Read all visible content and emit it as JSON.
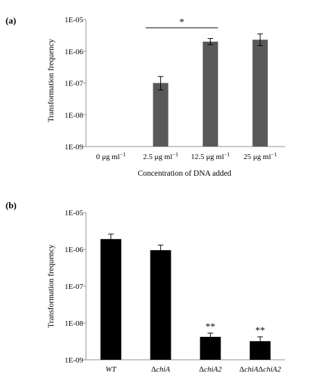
{
  "colors": {
    "panel_a_bar": "#595959",
    "panel_b_bar": "#000000",
    "axis": "#8c8c8c"
  },
  "chart_data": [
    {
      "type": "bar",
      "panel_label": "(a)",
      "ylabel": "Transformation  frequency",
      "xlabel": "Concentration  of DNA added",
      "y_scale": "log",
      "ylim": [
        1e-09,
        1e-05
      ],
      "y_tick_labels": [
        "1E-05",
        "1E-06",
        "1E-07",
        "1E-08",
        "1E-09"
      ],
      "grid": false,
      "categories": [
        {
          "base": "0 μg ml",
          "sup": "−1"
        },
        {
          "base": "2.5 μg ml",
          "sup": "−1"
        },
        {
          "base": "12.5 μg ml",
          "sup": "−1"
        },
        {
          "base": "25 μg ml",
          "sup": "−1"
        }
      ],
      "values": [
        null,
        1e-07,
        2e-06,
        2.3e-06
      ],
      "error_high": [
        null,
        1.6e-07,
        2.5e-06,
        3.5e-06
      ],
      "error_low": [
        null,
        6e-08,
        1.6e-06,
        1.5e-06
      ],
      "significance": {
        "label": "*",
        "from_category": 1,
        "to_category": 2
      }
    },
    {
      "type": "bar",
      "panel_label": "(b)",
      "ylabel": "Transformation  frequency",
      "xlabel": "",
      "y_scale": "log",
      "ylim": [
        1e-09,
        1e-05
      ],
      "y_tick_labels": [
        "1E-05",
        "1E-06",
        "1E-07",
        "1E-08",
        "1E-09"
      ],
      "grid": false,
      "categories": [
        [
          {
            "t": "WT",
            "i": true
          }
        ],
        [
          {
            "t": "Δ",
            "i": false
          },
          {
            "t": "chiA",
            "i": true
          }
        ],
        [
          {
            "t": "Δ",
            "i": false
          },
          {
            "t": "chiA2",
            "i": true
          }
        ],
        [
          {
            "t": "Δ",
            "i": false
          },
          {
            "t": "chiA",
            "i": true
          },
          {
            "t": "Δ",
            "i": false
          },
          {
            "t": "chiA2",
            "i": true
          }
        ]
      ],
      "values": [
        1.9e-06,
        9.5e-07,
        4.2e-09,
        3.2e-09
      ],
      "error_high": [
        2.6e-06,
        1.3e-06,
        5.3e-09,
        4.2e-09
      ],
      "error_low": [
        1.5e-06,
        7.5e-07,
        3.5e-09,
        2.5e-09
      ],
      "bar_annotations": [
        "",
        "",
        "**",
        "**"
      ]
    }
  ]
}
